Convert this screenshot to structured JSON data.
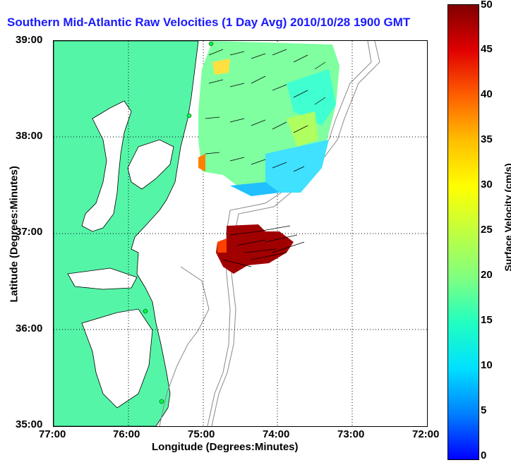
{
  "title": "Southern Mid-Atlantic Raw Velocities (1 Day Avg) 2010/10/28 1900 GMT",
  "axes": {
    "xlabel": "Longitude (Degrees:Minutes)",
    "ylabel": "Latitude (Degrees:Minutes)",
    "xticks": [
      "77:00",
      "76:00",
      "75:00",
      "74:00",
      "73:00",
      "72:00"
    ],
    "yticks": [
      "39:00",
      "38:00",
      "37:00",
      "36:00",
      "35:00"
    ]
  },
  "colorbar": {
    "label": "Surface Velocity (cm/s)",
    "ticks": [
      "50",
      "45",
      "40",
      "35",
      "30",
      "25",
      "20",
      "15",
      "10",
      "5",
      "0"
    ]
  },
  "colors": {
    "land": "#55f5a8",
    "title": "#1a1aff",
    "contour": "#888888"
  },
  "chart_data": {
    "type": "vector-field-map",
    "xlim": [
      -77,
      -72
    ],
    "ylim": [
      35,
      39
    ],
    "velocity_range_cm_s": [
      0,
      50
    ],
    "regions": [
      {
        "name": "northern field",
        "dominant_speed_cm_s": 15
      },
      {
        "name": "southern field",
        "dominant_speed_cm_s": 50
      }
    ],
    "grid": true
  }
}
